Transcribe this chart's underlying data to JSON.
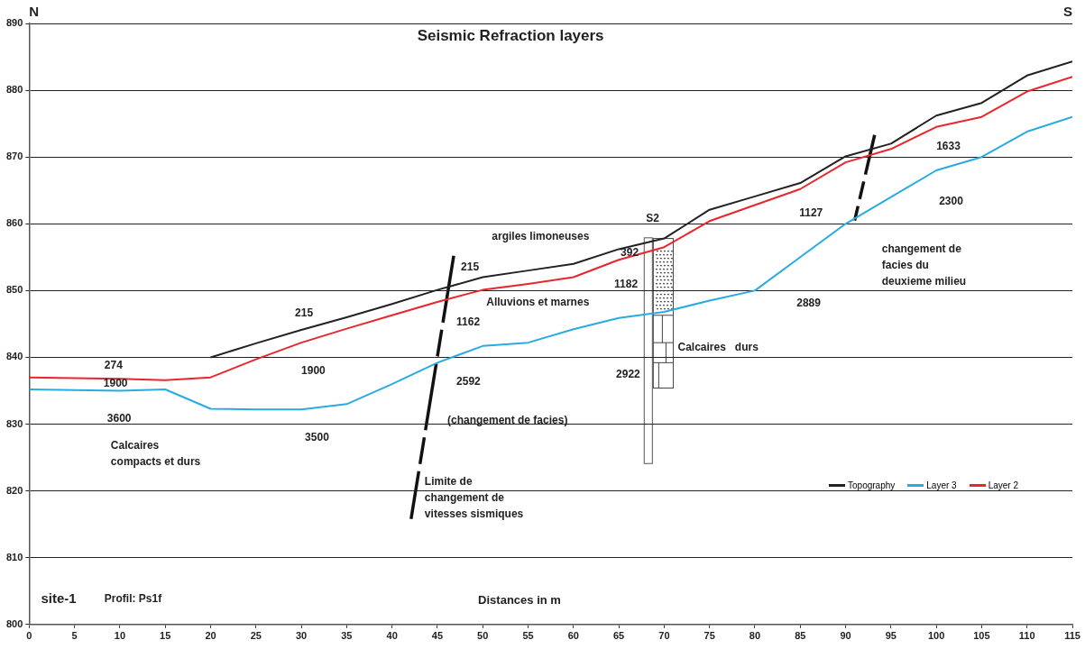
{
  "chart_data": {
    "type": "line",
    "title": "Seismic Refraction layers",
    "xlabel": "Distances in m",
    "xlim": [
      0,
      115
    ],
    "xticks": [
      0,
      5,
      10,
      15,
      20,
      25,
      30,
      35,
      40,
      45,
      50,
      55,
      60,
      65,
      70,
      75,
      80,
      85,
      90,
      95,
      100,
      105,
      110,
      115
    ],
    "ylim": [
      800,
      890
    ],
    "yticks": [
      800,
      810,
      820,
      830,
      840,
      850,
      860,
      870,
      880,
      890
    ],
    "grid": "y",
    "legend": "bottom right",
    "marker": "none",
    "line_style": "solid",
    "series": [
      {
        "name": "Topography",
        "color": "#222222",
        "x": [
          20,
          25,
          30,
          35,
          40,
          45,
          50,
          55,
          60,
          65,
          70,
          75,
          80,
          85,
          90,
          95,
          100,
          105,
          110,
          115
        ],
        "values": [
          840,
          842.1,
          844.1,
          846,
          848,
          850.1,
          852,
          853,
          854,
          856.2,
          857.8,
          862.1,
          864.1,
          866.1,
          870.1,
          872,
          876.2,
          878.1,
          882.2,
          884.3
        ]
      },
      {
        "name": "Layer 3",
        "color": "#29abe2",
        "x": [
          0,
          10,
          15,
          20,
          25,
          30,
          35,
          40,
          45,
          50,
          55,
          60,
          65,
          70,
          75,
          80,
          85,
          90,
          95,
          100,
          105,
          110,
          115
        ],
        "values": [
          835.2,
          835,
          835.2,
          832.3,
          832.2,
          832.2,
          833,
          836,
          839.2,
          841.7,
          842.2,
          844.2,
          845.9,
          846.8,
          848.5,
          850,
          855,
          860,
          864,
          868,
          870,
          873.8,
          876
        ]
      },
      {
        "name": "Layer 2",
        "color": "#e8262b",
        "x": [
          0,
          10,
          15,
          20,
          25,
          30,
          35,
          40,
          45,
          50,
          55,
          60,
          65,
          70,
          75,
          80,
          85,
          90,
          95,
          100,
          105,
          110,
          115
        ],
        "values": [
          837,
          836.8,
          836.6,
          837,
          839.7,
          842.2,
          844.3,
          846.3,
          848.3,
          850.1,
          851,
          852,
          854.6,
          856.5,
          860.4,
          862.8,
          865.2,
          869.2,
          871.2,
          874.5,
          876,
          879.8,
          882
        ]
      }
    ],
    "annotations": [
      "N",
      "S",
      "274",
      "1900",
      "3600",
      "Calcaires\ncompacts et durs",
      "215",
      "1900",
      "3500",
      "215",
      "1162",
      "2592",
      "(changement de facies)",
      "Limite de\nchangement de\nvitesses sismiques",
      "argiles limoneuses",
      "Alluvions et marnes",
      "392",
      "1182",
      "2922",
      "S2",
      "Calcaires   durs",
      "1127",
      "2889",
      "1633",
      "2300",
      "changement de\nfacies du\ndeuxieme milieu",
      "site-1",
      "Profil: Ps1f"
    ]
  }
}
